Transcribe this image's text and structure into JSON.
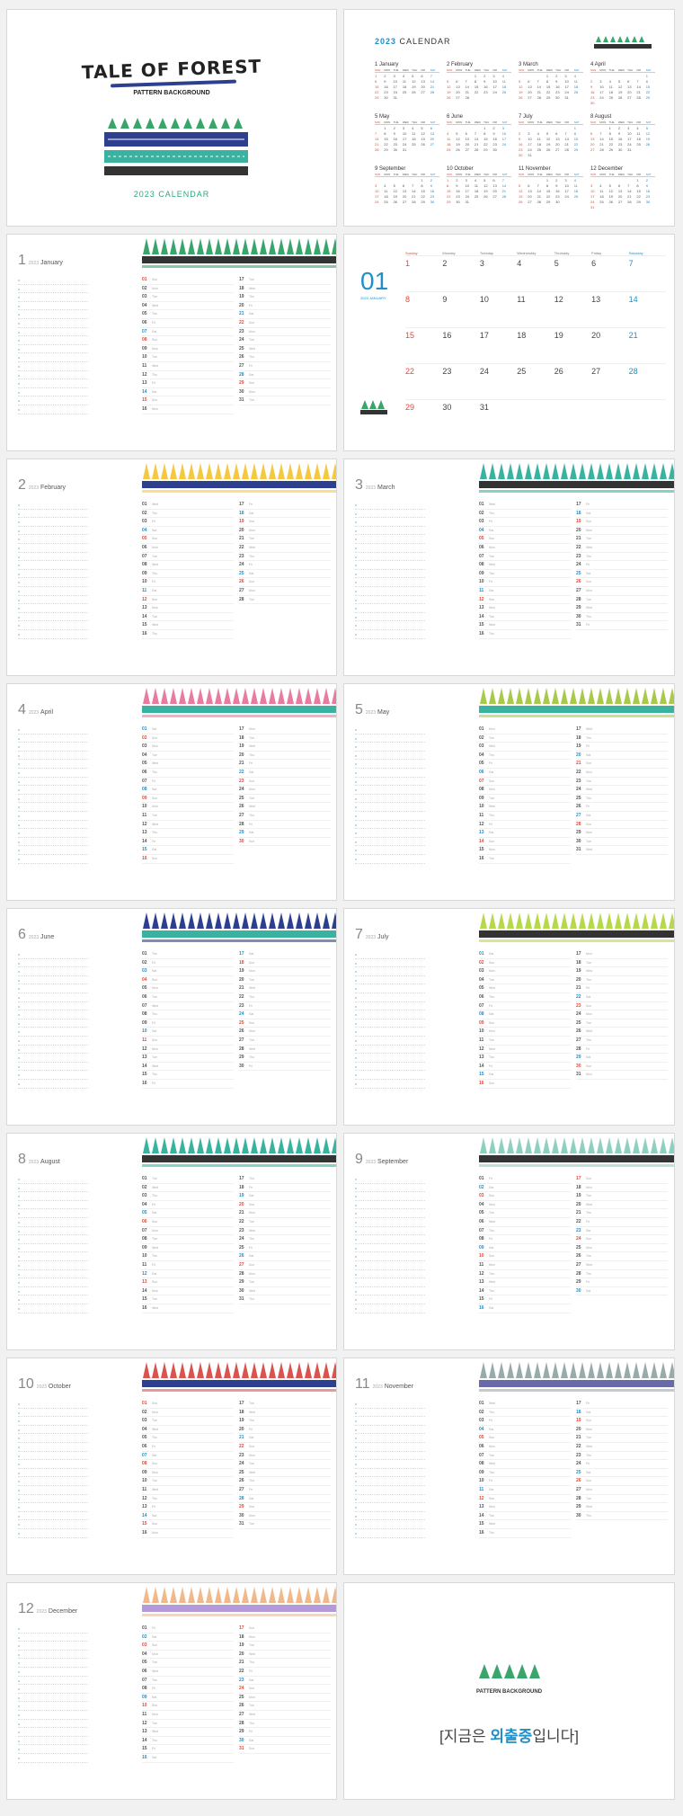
{
  "cover": {
    "title": "TALE OF FOREST",
    "subtitle": "PATTERN BACKGROUND",
    "calendar": "2023 CALENDAR"
  },
  "overview": {
    "year": "2023",
    "label": "CALENDAR",
    "weekdays": [
      "SUN",
      "MON",
      "TUE",
      "WED",
      "THU",
      "FRI",
      "SAT"
    ],
    "months": [
      {
        "name": "1 January",
        "start": 0,
        "days": 31
      },
      {
        "name": "2 February",
        "start": 3,
        "days": 28
      },
      {
        "name": "3 March",
        "start": 3,
        "days": 31
      },
      {
        "name": "4 April",
        "start": 6,
        "days": 30
      },
      {
        "name": "5 May",
        "start": 1,
        "days": 31
      },
      {
        "name": "6 June",
        "start": 4,
        "days": 30
      },
      {
        "name": "7 July",
        "start": 6,
        "days": 31
      },
      {
        "name": "8 August",
        "start": 2,
        "days": 31
      },
      {
        "name": "9 September",
        "start": 5,
        "days": 30
      },
      {
        "name": "10 October",
        "start": 0,
        "days": 31
      },
      {
        "name": "11 November",
        "start": 3,
        "days": 30
      },
      {
        "name": "12 December",
        "start": 5,
        "days": 31
      }
    ]
  },
  "january": {
    "num": "01",
    "sub": "2023 JANUARY",
    "weekdays": [
      "Sunday",
      "Monday",
      "Tuesday",
      "Wednesday",
      "Thursday",
      "Friday",
      "Saturday"
    ],
    "weeks": [
      [
        "1",
        "2",
        "3",
        "4",
        "5",
        "6",
        "7"
      ],
      [
        "8",
        "9",
        "10",
        "11",
        "12",
        "13",
        "14"
      ],
      [
        "15",
        "16",
        "17",
        "18",
        "19",
        "20",
        "21"
      ],
      [
        "22",
        "23",
        "24",
        "25",
        "26",
        "27",
        "28"
      ],
      [
        "29",
        "30",
        "31",
        "",
        "",
        "",
        ""
      ]
    ]
  },
  "months": [
    {
      "no": "1",
      "year": "2023",
      "name": "January",
      "start": 0,
      "days": 31
    },
    {
      "no": "2",
      "year": "2023",
      "name": "February",
      "start": 3,
      "days": 28
    },
    {
      "no": "3",
      "year": "2023",
      "name": "March",
      "start": 3,
      "days": 31
    },
    {
      "no": "4",
      "year": "2023",
      "name": "April",
      "start": 6,
      "days": 30
    },
    {
      "no": "5",
      "year": "2023",
      "name": "May",
      "start": 1,
      "days": 31
    },
    {
      "no": "6",
      "year": "2023",
      "name": "June",
      "start": 4,
      "days": 30
    },
    {
      "no": "7",
      "year": "2023",
      "name": "July",
      "start": 6,
      "days": 31
    },
    {
      "no": "8",
      "year": "2023",
      "name": "August",
      "start": 2,
      "days": 31
    },
    {
      "no": "9",
      "year": "2023",
      "name": "September",
      "start": 5,
      "days": 30
    },
    {
      "no": "10",
      "year": "2023",
      "name": "October",
      "start": 0,
      "days": 31
    },
    {
      "no": "11",
      "year": "2023",
      "name": "November",
      "start": 3,
      "days": 30
    },
    {
      "no": "12",
      "year": "2023",
      "name": "December",
      "start": 5,
      "days": 31
    }
  ],
  "dayAbbr": [
    "Sun",
    "Mon",
    "Tue",
    "Wed",
    "Thu",
    "Fri",
    "Sat"
  ],
  "colors": {
    "sun": "#e2483a",
    "sat": "#1f8fc8",
    "tree": "#3aa56b",
    "navy": "#2d3f8e",
    "teal": "#39b2a0"
  },
  "back": {
    "brand": "PATTERN BACKGROUND",
    "away_pre": "[지금은 ",
    "away_hi": "외출중",
    "away_post": "입니다]"
  }
}
